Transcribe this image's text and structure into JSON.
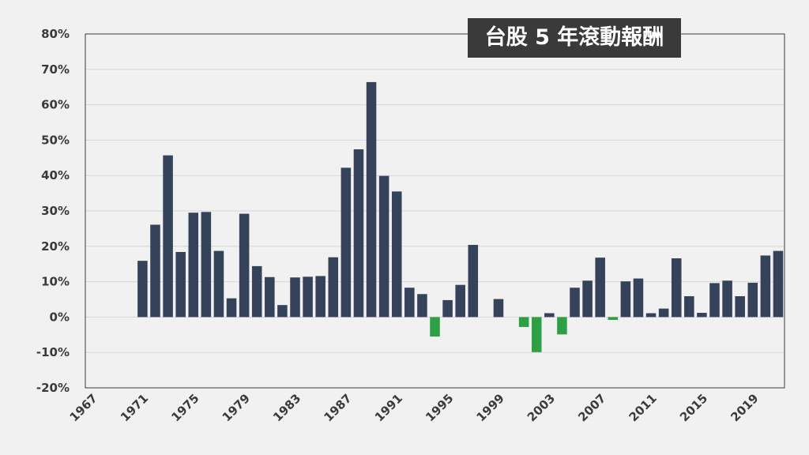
{
  "chart_data": {
    "type": "bar",
    "title": "台股 5 年滾動報酬",
    "xlabel": "",
    "ylabel": "",
    "ylim": [
      -20,
      80
    ],
    "yticks": [
      "-20%",
      "-10%",
      "0%",
      "10%",
      "20%",
      "30%",
      "40%",
      "50%",
      "60%",
      "70%",
      "80%"
    ],
    "xticks": [
      "1967",
      "1971",
      "1975",
      "1979",
      "1983",
      "1987",
      "1991",
      "1995",
      "1999",
      "2003",
      "2007",
      "2011",
      "2015",
      "2019"
    ],
    "x_start": 1967,
    "x_end": 2021,
    "grid": "horizontal",
    "colors": {
      "positive": "#34435a",
      "negative": "#2ea043"
    },
    "categories": [
      1971,
      1972,
      1973,
      1974,
      1975,
      1976,
      1977,
      1978,
      1979,
      1980,
      1981,
      1982,
      1983,
      1984,
      1985,
      1986,
      1987,
      1988,
      1989,
      1990,
      1991,
      1992,
      1993,
      1994,
      1995,
      1996,
      1997,
      1998,
      1999,
      2000,
      2001,
      2002,
      2003,
      2004,
      2005,
      2006,
      2007,
      2008,
      2009,
      2010,
      2011,
      2012,
      2013,
      2014,
      2015,
      2016,
      2017,
      2018,
      2019,
      2020,
      2021
    ],
    "values": [
      15.9,
      26.1,
      45.7,
      18.4,
      29.5,
      29.7,
      18.7,
      5.3,
      29.2,
      14.4,
      11.3,
      3.4,
      11.2,
      11.4,
      11.6,
      16.9,
      42.2,
      47.4,
      66.4,
      39.9,
      35.5,
      8.3,
      6.5,
      -5.5,
      4.8,
      9.1,
      20.4,
      0,
      5.1,
      0,
      -2.8,
      -9.9,
      1.1,
      -4.9,
      8.3,
      10.3,
      16.8,
      -0.8,
      10.1,
      10.9,
      1.1,
      2.4,
      16.6,
      5.9,
      1.2,
      9.6,
      10.3,
      5.9,
      9.7,
      17.4,
      18.7
    ]
  }
}
